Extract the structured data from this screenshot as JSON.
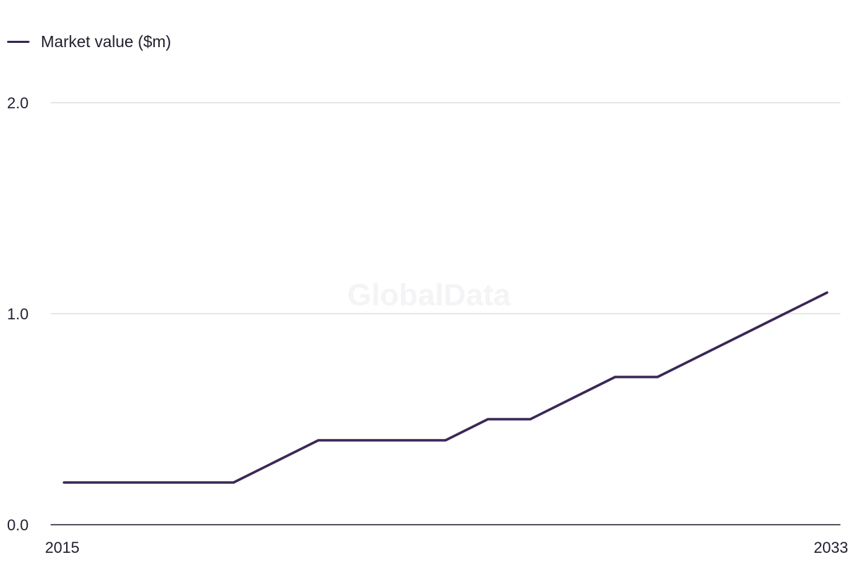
{
  "chart_data": {
    "type": "line",
    "title": "",
    "xlabel": "",
    "ylabel": "",
    "x": [
      2015,
      2016,
      2017,
      2018,
      2019,
      2020,
      2021,
      2022,
      2023,
      2024,
      2025,
      2026,
      2027,
      2028,
      2029,
      2030,
      2031,
      2032,
      2033
    ],
    "x_tick_labels": [
      "2015",
      "2033"
    ],
    "y_tick_labels": [
      "2.0",
      "1.0",
      "0.0"
    ],
    "y_ticks": [
      2.0,
      1.0,
      0.0
    ],
    "ylim": [
      0,
      2
    ],
    "grid": true,
    "legend_position": "top-left",
    "series": [
      {
        "name": "Market value ($m)",
        "color": "#3b2758",
        "values": [
          0.2,
          0.2,
          0.2,
          0.2,
          0.2,
          0.3,
          0.4,
          0.4,
          0.4,
          0.4,
          0.5,
          0.5,
          0.6,
          0.7,
          0.7,
          0.8,
          0.9,
          1.0,
          1.1
        ]
      }
    ],
    "watermark": "GlobalData"
  }
}
